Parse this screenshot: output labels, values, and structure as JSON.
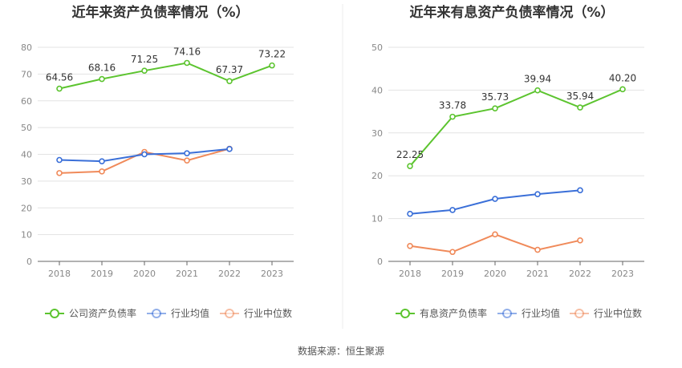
{
  "chart_data": [
    {
      "type": "line",
      "title": "近年来资产负债率情况（%）",
      "categories": [
        "2018",
        "2019",
        "2020",
        "2021",
        "2022",
        "2023"
      ],
      "ylim": [
        0,
        80
      ],
      "yticks": [
        "0",
        "10",
        "20",
        "30",
        "40",
        "50",
        "60",
        "70",
        "80"
      ],
      "grid": true,
      "legend_position": "bottom",
      "series": [
        {
          "name": "公司资产负债率",
          "color": "#5cc42f",
          "values": [
            64.56,
            68.16,
            71.25,
            74.16,
            67.37,
            73.22
          ],
          "labels": [
            "64.56",
            "68.16",
            "71.25",
            "74.16",
            "67.37",
            "73.22"
          ]
        },
        {
          "name": "行业均值",
          "color": "#3a6fd8",
          "values": [
            37.9,
            37.4,
            40.0,
            40.4,
            42.0,
            null
          ]
        },
        {
          "name": "行业中位数",
          "color": "#f08a5a",
          "values": [
            33.0,
            33.6,
            40.9,
            37.7,
            42.1,
            null
          ]
        }
      ]
    },
    {
      "type": "line",
      "title": "近年来有息资产负债率情况（%）",
      "categories": [
        "2018",
        "2019",
        "2020",
        "2021",
        "2022",
        "2023"
      ],
      "ylim": [
        0,
        50
      ],
      "yticks": [
        "0",
        "10",
        "20",
        "30",
        "40",
        "50"
      ],
      "grid": true,
      "legend_position": "bottom",
      "series": [
        {
          "name": "有息资产负债率",
          "color": "#5cc42f",
          "values": [
            22.25,
            33.78,
            35.73,
            39.94,
            35.94,
            40.2
          ],
          "labels": [
            "22.25",
            "33.78",
            "35.73",
            "39.94",
            "35.94",
            "40.20"
          ]
        },
        {
          "name": "行业均值",
          "color": "#3a6fd8",
          "values": [
            11.1,
            12.0,
            14.6,
            15.7,
            16.6,
            null
          ]
        },
        {
          "name": "行业中位数",
          "color": "#f08a5a",
          "values": [
            3.6,
            2.2,
            6.3,
            2.7,
            4.9,
            null
          ]
        }
      ]
    }
  ],
  "source_text": "数据来源：恒生聚源",
  "colors": {
    "grid": "#e3e3e3",
    "axis": "#666666",
    "divider": "#eeeeee"
  }
}
